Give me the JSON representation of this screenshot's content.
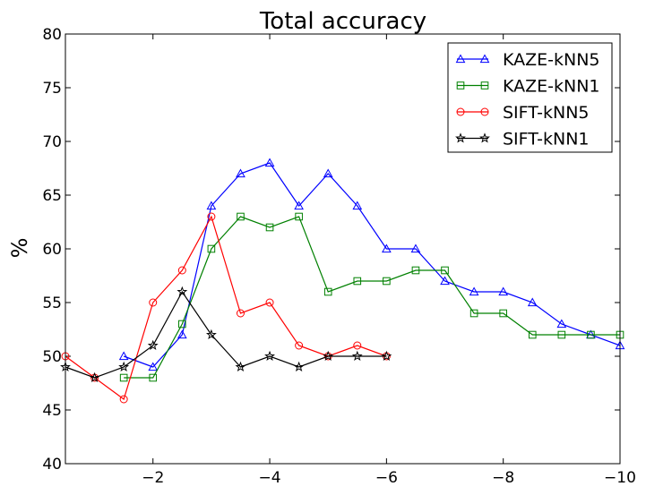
{
  "chart_data": {
    "type": "line",
    "title": "Total accuracy",
    "xlabel": "",
    "ylabel": "%",
    "xlim": [
      -0.5,
      -10
    ],
    "ylim": [
      40,
      80
    ],
    "grid": false,
    "legend_placement": "top-right",
    "x_ticks": [
      {
        "value": -2,
        "label": "−2"
      },
      {
        "value": -4,
        "label": "−4"
      },
      {
        "value": -6,
        "label": "−6"
      },
      {
        "value": -8,
        "label": "−8"
      },
      {
        "value": -10,
        "label": "−10"
      }
    ],
    "y_ticks": [
      {
        "value": 40,
        "label": "40"
      },
      {
        "value": 45,
        "label": "45"
      },
      {
        "value": 50,
        "label": "50"
      },
      {
        "value": 55,
        "label": "55"
      },
      {
        "value": 60,
        "label": "60"
      },
      {
        "value": 65,
        "label": "65"
      },
      {
        "value": 70,
        "label": "70"
      },
      {
        "value": 75,
        "label": "75"
      },
      {
        "value": 80,
        "label": "80"
      }
    ],
    "series": [
      {
        "name": "KAZE-kNN5",
        "color": "#0000ff",
        "marker": "triangle",
        "x": [
          -1.5,
          -2,
          -2.5,
          -3,
          -3.5,
          -4,
          -4.5,
          -5,
          -5.5,
          -6,
          -6.5,
          -7,
          -7.5,
          -8,
          -8.5,
          -9,
          -9.5,
          -10
        ],
        "y": [
          50,
          49,
          52,
          64,
          67,
          68,
          64,
          67,
          64,
          60,
          60,
          57,
          56,
          56,
          55,
          53,
          52,
          51
        ]
      },
      {
        "name": "KAZE-kNN1",
        "color": "#008000",
        "marker": "square",
        "x": [
          -1.5,
          -2,
          -2.5,
          -3,
          -3.5,
          -4,
          -4.5,
          -5,
          -5.5,
          -6,
          -6.5,
          -7,
          -7.5,
          -8,
          -8.5,
          -9,
          -9.5,
          -10
        ],
        "y": [
          48,
          48,
          53,
          60,
          63,
          62,
          63,
          56,
          57,
          57,
          58,
          58,
          54,
          54,
          52,
          52,
          52,
          52
        ]
      },
      {
        "name": "SIFT-kNN5",
        "color": "#ff0000",
        "marker": "circle",
        "x": [
          -0.5,
          -1,
          -1.5,
          -2,
          -2.5,
          -3,
          -3.5,
          -4,
          -4.5,
          -5,
          -5.5,
          -6
        ],
        "y": [
          50,
          48,
          46,
          55,
          58,
          63,
          54,
          55,
          51,
          50,
          51,
          50
        ]
      },
      {
        "name": "SIFT-kNN1",
        "color": "#000000",
        "marker": "star",
        "x": [
          -0.5,
          -1,
          -1.5,
          -2,
          -2.5,
          -3,
          -3.5,
          -4,
          -4.5,
          -5,
          -5.5,
          -6
        ],
        "y": [
          49,
          48,
          49,
          51,
          56,
          52,
          49,
          50,
          49,
          50,
          50,
          50
        ]
      }
    ]
  }
}
